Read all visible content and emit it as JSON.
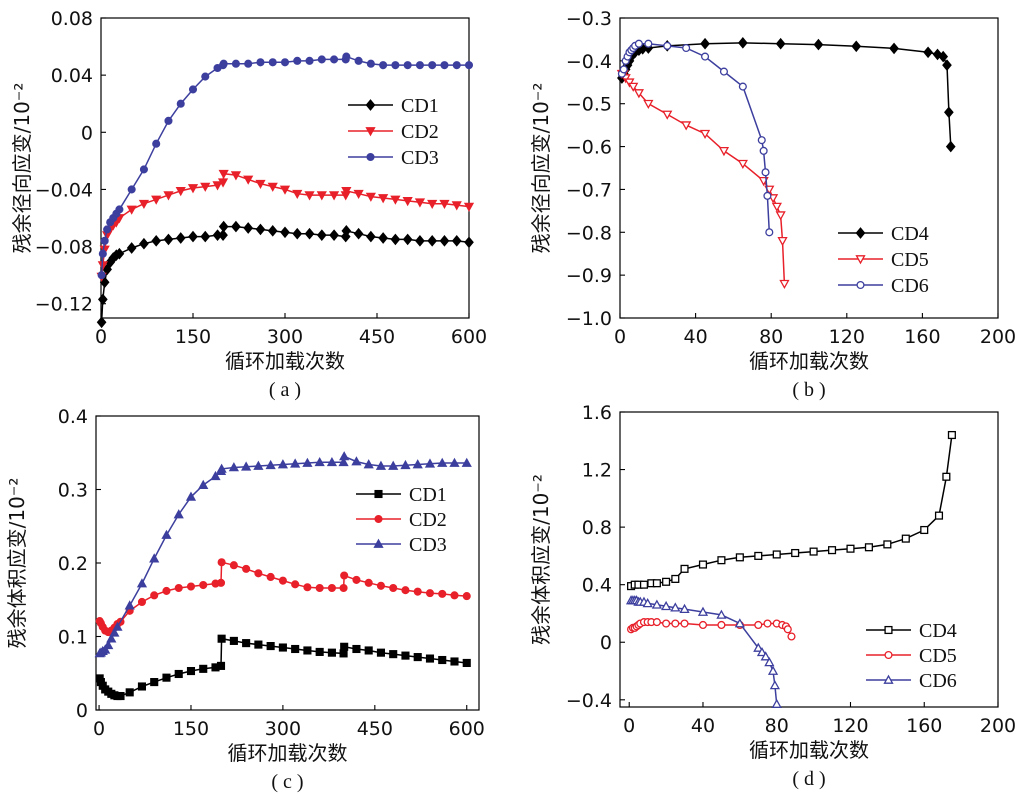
{
  "chart_data": [
    {
      "type": "line",
      "panel_label": "( a )",
      "xlabel": "循环加载次数",
      "ylabel": "残余径向应变/10⁻²",
      "xlim": [
        0,
        600
      ],
      "ylim": [
        -0.13,
        0.08
      ],
      "xticks": [
        0,
        150,
        300,
        450,
        600
      ],
      "yticks": [
        -0.12,
        -0.08,
        -0.04,
        0,
        0.04,
        0.08
      ],
      "ytick_labels": [
        "−0.12",
        "−0.08",
        "−0.04",
        "0",
        "0.04",
        "0.08"
      ],
      "grid": false,
      "legend_position": "center-right",
      "series": [
        {
          "name": "CD1",
          "color": "#000000",
          "marker": "diamond",
          "filled": true,
          "x": [
            1,
            3,
            6,
            10,
            15,
            20,
            25,
            30,
            50,
            70,
            90,
            110,
            130,
            150,
            170,
            190,
            199,
            200,
            220,
            240,
            260,
            280,
            300,
            320,
            340,
            360,
            380,
            399,
            400,
            420,
            440,
            460,
            480,
            500,
            520,
            540,
            560,
            580,
            600
          ],
          "y": [
            -0.133,
            -0.117,
            -0.105,
            -0.096,
            -0.091,
            -0.088,
            -0.086,
            -0.085,
            -0.081,
            -0.078,
            -0.076,
            -0.075,
            -0.074,
            -0.073,
            -0.073,
            -0.072,
            -0.072,
            -0.066,
            -0.066,
            -0.067,
            -0.068,
            -0.069,
            -0.07,
            -0.071,
            -0.071,
            -0.072,
            -0.072,
            -0.073,
            -0.069,
            -0.071,
            -0.073,
            -0.074,
            -0.075,
            -0.075,
            -0.076,
            -0.076,
            -0.076,
            -0.076,
            -0.077
          ]
        },
        {
          "name": "CD2",
          "color": "#e8202a",
          "marker": "triangle-down",
          "filled": true,
          "x": [
            1,
            3,
            6,
            10,
            15,
            20,
            25,
            30,
            50,
            70,
            90,
            110,
            130,
            150,
            170,
            190,
            199,
            200,
            220,
            240,
            260,
            280,
            300,
            320,
            340,
            360,
            380,
            399,
            400,
            420,
            440,
            460,
            480,
            500,
            520,
            540,
            560,
            580,
            600
          ],
          "y": [
            -0.101,
            -0.093,
            -0.082,
            -0.072,
            -0.068,
            -0.065,
            -0.063,
            -0.06,
            -0.054,
            -0.05,
            -0.047,
            -0.044,
            -0.041,
            -0.039,
            -0.038,
            -0.037,
            -0.035,
            -0.029,
            -0.03,
            -0.033,
            -0.036,
            -0.038,
            -0.04,
            -0.043,
            -0.044,
            -0.044,
            -0.044,
            -0.044,
            -0.041,
            -0.043,
            -0.045,
            -0.046,
            -0.047,
            -0.048,
            -0.049,
            -0.05,
            -0.05,
            -0.051,
            -0.052
          ]
        },
        {
          "name": "CD3",
          "color": "#3d3f9e",
          "marker": "circle",
          "filled": true,
          "x": [
            1,
            3,
            6,
            10,
            15,
            20,
            25,
            30,
            50,
            70,
            90,
            110,
            130,
            150,
            170,
            190,
            199,
            200,
            220,
            240,
            260,
            280,
            300,
            320,
            340,
            360,
            380,
            399,
            400,
            420,
            440,
            460,
            480,
            500,
            520,
            540,
            560,
            580,
            600
          ],
          "y": [
            -0.1,
            -0.085,
            -0.076,
            -0.068,
            -0.063,
            -0.06,
            -0.057,
            -0.054,
            -0.04,
            -0.026,
            -0.008,
            0.008,
            0.02,
            0.03,
            0.039,
            0.045,
            0.047,
            0.048,
            0.048,
            0.048,
            0.049,
            0.049,
            0.049,
            0.05,
            0.05,
            0.051,
            0.051,
            0.051,
            0.053,
            0.05,
            0.048,
            0.047,
            0.047,
            0.047,
            0.047,
            0.047,
            0.047,
            0.047,
            0.047
          ]
        }
      ]
    },
    {
      "type": "line",
      "panel_label": "( b )",
      "xlabel": "循环加载次数",
      "ylabel": "残余径向应变/10⁻²",
      "xlim": [
        0,
        200
      ],
      "ylim": [
        -1.0,
        -0.3
      ],
      "xticks": [
        0,
        40,
        80,
        120,
        160,
        200
      ],
      "yticks": [
        -1.0,
        -0.9,
        -0.8,
        -0.7,
        -0.6,
        -0.5,
        -0.4,
        -0.3
      ],
      "ytick_labels": [
        "−1.0",
        "−0.9",
        "−0.8",
        "−0.7",
        "−0.6",
        "−0.5",
        "−0.4",
        "−0.3"
      ],
      "grid": false,
      "legend_position": "bottom-right",
      "series": [
        {
          "name": "CD4",
          "color": "#000000",
          "marker": "diamond",
          "filled": true,
          "x": [
            1,
            2,
            3,
            4,
            5,
            6,
            8,
            10,
            12,
            15,
            25,
            45,
            65,
            85,
            105,
            125,
            145,
            163,
            168,
            171,
            173,
            174,
            175
          ],
          "y": [
            -0.44,
            -0.43,
            -0.42,
            -0.41,
            -0.4,
            -0.39,
            -0.38,
            -0.375,
            -0.372,
            -0.37,
            -0.365,
            -0.36,
            -0.358,
            -0.36,
            -0.362,
            -0.366,
            -0.371,
            -0.38,
            -0.385,
            -0.39,
            -0.41,
            -0.52,
            -0.6
          ]
        },
        {
          "name": "CD5",
          "color": "#e8202a",
          "marker": "triangle-down",
          "filled": false,
          "x": [
            1,
            2,
            3,
            5,
            7,
            10,
            15,
            25,
            35,
            45,
            55,
            65,
            76,
            79,
            81,
            83,
            85,
            86,
            87
          ],
          "y": [
            -0.43,
            -0.43,
            -0.44,
            -0.45,
            -0.46,
            -0.475,
            -0.5,
            -0.525,
            -0.55,
            -0.57,
            -0.61,
            -0.64,
            -0.68,
            -0.7,
            -0.72,
            -0.74,
            -0.76,
            -0.82,
            -0.92
          ]
        },
        {
          "name": "CD6",
          "color": "#3d3f9e",
          "marker": "circle",
          "filled": false,
          "x": [
            1,
            2,
            3,
            4,
            5,
            6,
            7,
            8,
            10,
            15,
            25,
            35,
            45,
            55,
            65,
            75,
            76,
            77,
            78,
            79
          ],
          "y": [
            -0.43,
            -0.42,
            -0.4,
            -0.39,
            -0.38,
            -0.375,
            -0.37,
            -0.365,
            -0.36,
            -0.36,
            -0.365,
            -0.37,
            -0.39,
            -0.425,
            -0.46,
            -0.585,
            -0.61,
            -0.66,
            -0.715,
            -0.8
          ]
        }
      ]
    },
    {
      "type": "line",
      "panel_label": "( c )",
      "xlabel": "循环加载次数",
      "ylabel": "残余体积应变/10⁻²",
      "xlim": [
        -5,
        620
      ],
      "ylim": [
        0,
        0.4
      ],
      "xticks": [
        0,
        150,
        300,
        450,
        600
      ],
      "yticks": [
        0,
        0.1,
        0.2,
        0.3,
        0.4
      ],
      "ytick_labels": [
        "0",
        "0.1",
        "0.2",
        "0.3",
        "0.4"
      ],
      "grid": false,
      "legend_position": "center-right",
      "series": [
        {
          "name": "CD1",
          "color": "#000000",
          "marker": "square",
          "filled": true,
          "x": [
            1,
            3,
            6,
            10,
            15,
            20,
            25,
            30,
            35,
            50,
            70,
            90,
            110,
            130,
            150,
            170,
            190,
            199,
            200,
            220,
            240,
            260,
            280,
            300,
            320,
            340,
            360,
            380,
            399,
            400,
            420,
            440,
            460,
            480,
            500,
            520,
            540,
            560,
            580,
            600
          ],
          "y": [
            0.043,
            0.038,
            0.033,
            0.028,
            0.025,
            0.022,
            0.02,
            0.019,
            0.019,
            0.024,
            0.032,
            0.038,
            0.044,
            0.049,
            0.053,
            0.056,
            0.058,
            0.06,
            0.097,
            0.094,
            0.091,
            0.089,
            0.087,
            0.085,
            0.083,
            0.081,
            0.079,
            0.078,
            0.077,
            0.086,
            0.083,
            0.081,
            0.078,
            0.076,
            0.074,
            0.072,
            0.07,
            0.068,
            0.066,
            0.064
          ]
        },
        {
          "name": "CD2",
          "color": "#e8202a",
          "marker": "circle",
          "filled": true,
          "x": [
            1,
            3,
            6,
            10,
            15,
            20,
            25,
            30,
            35,
            50,
            70,
            90,
            110,
            130,
            150,
            170,
            190,
            199,
            200,
            220,
            240,
            260,
            280,
            300,
            320,
            340,
            360,
            380,
            399,
            400,
            420,
            440,
            460,
            480,
            500,
            520,
            540,
            560,
            580,
            600
          ],
          "y": [
            0.121,
            0.118,
            0.113,
            0.108,
            0.106,
            0.108,
            0.112,
            0.117,
            0.12,
            0.135,
            0.147,
            0.156,
            0.162,
            0.166,
            0.168,
            0.17,
            0.172,
            0.173,
            0.201,
            0.197,
            0.192,
            0.186,
            0.181,
            0.176,
            0.171,
            0.167,
            0.166,
            0.166,
            0.166,
            0.183,
            0.177,
            0.173,
            0.169,
            0.166,
            0.163,
            0.161,
            0.159,
            0.158,
            0.156,
            0.155
          ]
        },
        {
          "name": "CD3",
          "color": "#3d3f9e",
          "marker": "triangle-up",
          "filled": true,
          "x": [
            1,
            3,
            6,
            10,
            15,
            20,
            25,
            30,
            50,
            70,
            90,
            110,
            130,
            150,
            170,
            190,
            199,
            200,
            220,
            240,
            260,
            280,
            300,
            320,
            340,
            360,
            380,
            399,
            400,
            420,
            440,
            460,
            480,
            500,
            520,
            540,
            560,
            580,
            600
          ],
          "y": [
            0.077,
            0.078,
            0.08,
            0.082,
            0.088,
            0.097,
            0.105,
            0.113,
            0.142,
            0.172,
            0.206,
            0.238,
            0.266,
            0.29,
            0.306,
            0.318,
            0.325,
            0.328,
            0.33,
            0.331,
            0.332,
            0.333,
            0.334,
            0.335,
            0.336,
            0.337,
            0.337,
            0.337,
            0.345,
            0.338,
            0.334,
            0.332,
            0.332,
            0.333,
            0.334,
            0.335,
            0.336,
            0.336,
            0.336
          ]
        }
      ]
    },
    {
      "type": "line",
      "panel_label": "( d )",
      "xlabel": "循环加载次数",
      "ylabel": "残余体积应变/10⁻²",
      "xlim": [
        -5,
        200
      ],
      "ylim": [
        -0.45,
        1.6
      ],
      "xticks": [
        0,
        40,
        80,
        120,
        160,
        200
      ],
      "yticks": [
        -0.4,
        0,
        0.4,
        0.8,
        1.2,
        1.6
      ],
      "ytick_labels": [
        "−0.4",
        "0",
        "0.4",
        "0.8",
        "1.2",
        "1.6"
      ],
      "grid": false,
      "legend_position": "bottom-right",
      "series": [
        {
          "name": "CD4",
          "color": "#000000",
          "marker": "square",
          "filled": false,
          "x": [
            1,
            3,
            5,
            8,
            12,
            15,
            20,
            25,
            30,
            40,
            50,
            60,
            70,
            80,
            90,
            100,
            110,
            120,
            130,
            140,
            150,
            160,
            168,
            172,
            175
          ],
          "y": [
            0.39,
            0.4,
            0.4,
            0.4,
            0.41,
            0.41,
            0.42,
            0.44,
            0.51,
            0.54,
            0.57,
            0.59,
            0.6,
            0.61,
            0.62,
            0.63,
            0.64,
            0.65,
            0.66,
            0.68,
            0.72,
            0.78,
            0.88,
            1.15,
            1.44
          ]
        },
        {
          "name": "CD5",
          "color": "#e8202a",
          "marker": "circle",
          "filled": false,
          "x": [
            1,
            2,
            3,
            4,
            5,
            6,
            8,
            10,
            12,
            15,
            20,
            25,
            30,
            40,
            50,
            60,
            70,
            75,
            80,
            83,
            85,
            86,
            88
          ],
          "y": [
            0.09,
            0.1,
            0.1,
            0.11,
            0.12,
            0.13,
            0.14,
            0.14,
            0.14,
            0.14,
            0.13,
            0.13,
            0.13,
            0.12,
            0.12,
            0.12,
            0.12,
            0.13,
            0.13,
            0.12,
            0.11,
            0.09,
            0.04
          ]
        },
        {
          "name": "CD6",
          "color": "#3d3f9e",
          "marker": "triangle-up",
          "filled": false,
          "x": [
            1,
            2,
            3,
            4,
            5,
            6,
            8,
            10,
            15,
            20,
            25,
            30,
            40,
            50,
            60,
            70,
            72,
            74,
            76,
            78,
            79,
            80
          ],
          "y": [
            0.29,
            0.29,
            0.29,
            0.29,
            0.28,
            0.28,
            0.28,
            0.27,
            0.26,
            0.25,
            0.24,
            0.23,
            0.21,
            0.19,
            0.13,
            -0.04,
            -0.07,
            -0.1,
            -0.14,
            -0.2,
            -0.3,
            -0.43
          ]
        }
      ]
    }
  ]
}
